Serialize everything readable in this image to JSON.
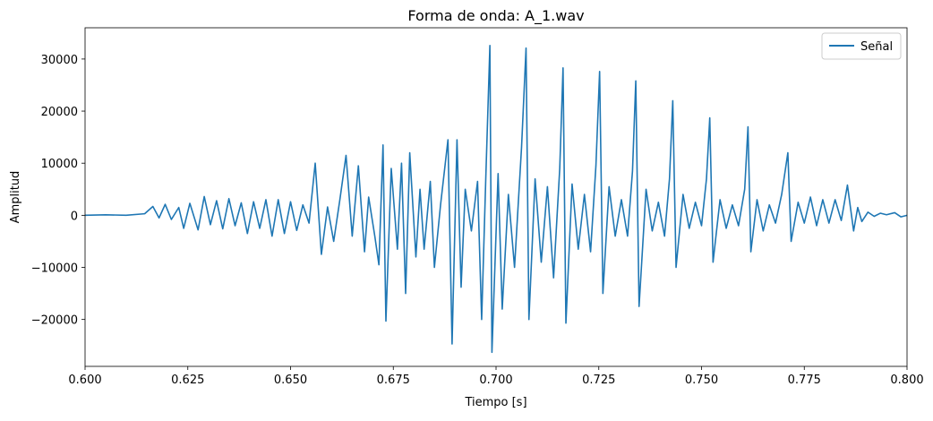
{
  "chart_data": {
    "type": "line",
    "title": "Forma de onda: A_1.wav",
    "xlabel": "Tiempo [s]",
    "ylabel": "Amplitud",
    "xlim": [
      0.6,
      0.8
    ],
    "ylim": [
      -29000,
      36000
    ],
    "x_ticks": [
      0.6,
      0.625,
      0.65,
      0.675,
      0.7,
      0.725,
      0.75,
      0.775,
      0.8
    ],
    "x_tick_labels": [
      "0.600",
      "0.625",
      "0.650",
      "0.675",
      "0.700",
      "0.725",
      "0.750",
      "0.775",
      "0.800"
    ],
    "y_ticks": [
      -20000,
      -10000,
      0,
      10000,
      20000,
      30000
    ],
    "y_tick_labels": [
      "−20000",
      "−10000",
      "0",
      "10000",
      "20000",
      "30000"
    ],
    "grid": false,
    "legend_position": "top-right",
    "series": [
      {
        "name": "Señal",
        "color": "#1f77b4",
        "points": [
          [
            0.6,
            0
          ],
          [
            0.605,
            100
          ],
          [
            0.61,
            0
          ],
          [
            0.6145,
            300
          ],
          [
            0.6165,
            1700
          ],
          [
            0.618,
            -500
          ],
          [
            0.6195,
            2100
          ],
          [
            0.621,
            -800
          ],
          [
            0.6228,
            1500
          ],
          [
            0.624,
            -2500
          ],
          [
            0.6255,
            2300
          ],
          [
            0.6275,
            -2800
          ],
          [
            0.629,
            3600
          ],
          [
            0.6305,
            -1800
          ],
          [
            0.632,
            2800
          ],
          [
            0.6335,
            -2600
          ],
          [
            0.635,
            3200
          ],
          [
            0.6365,
            -2000
          ],
          [
            0.638,
            2400
          ],
          [
            0.6395,
            -3500
          ],
          [
            0.641,
            2600
          ],
          [
            0.6425,
            -2500
          ],
          [
            0.644,
            3000
          ],
          [
            0.6455,
            -4000
          ],
          [
            0.647,
            3000
          ],
          [
            0.6485,
            -3500
          ],
          [
            0.65,
            2600
          ],
          [
            0.6515,
            -2900
          ],
          [
            0.653,
            2000
          ],
          [
            0.6545,
            -1500
          ],
          [
            0.656,
            10000
          ],
          [
            0.6575,
            -7500
          ],
          [
            0.659,
            1600
          ],
          [
            0.6605,
            -5000
          ],
          [
            0.662,
            3000
          ],
          [
            0.6635,
            11500
          ],
          [
            0.665,
            -4000
          ],
          [
            0.6665,
            9500
          ],
          [
            0.668,
            -7000
          ],
          [
            0.669,
            3500
          ],
          [
            0.6705,
            -4000
          ],
          [
            0.6715,
            -9500
          ],
          [
            0.6725,
            13500
          ],
          [
            0.6732,
            -20300
          ],
          [
            0.6745,
            9000
          ],
          [
            0.676,
            -6500
          ],
          [
            0.677,
            10000
          ],
          [
            0.678,
            -15000
          ],
          [
            0.679,
            12000
          ],
          [
            0.6805,
            -8000
          ],
          [
            0.6815,
            5000
          ],
          [
            0.6825,
            -6500
          ],
          [
            0.684,
            6500
          ],
          [
            0.685,
            -10000
          ],
          [
            0.6865,
            2000
          ],
          [
            0.6883,
            14500
          ],
          [
            0.6893,
            -24700
          ],
          [
            0.6905,
            14500
          ],
          [
            0.6915,
            -13800
          ],
          [
            0.6925,
            5000
          ],
          [
            0.694,
            -3000
          ],
          [
            0.6955,
            6500
          ],
          [
            0.6965,
            -20000
          ],
          [
            0.6975,
            7000
          ],
          [
            0.6985,
            32600
          ],
          [
            0.699,
            -26300
          ],
          [
            0.7005,
            8000
          ],
          [
            0.7015,
            -18000
          ],
          [
            0.703,
            4000
          ],
          [
            0.7045,
            -10000
          ],
          [
            0.7062,
            13000
          ],
          [
            0.7073,
            32100
          ],
          [
            0.708,
            -20000
          ],
          [
            0.7095,
            7000
          ],
          [
            0.711,
            -9000
          ],
          [
            0.7125,
            5500
          ],
          [
            0.714,
            -12000
          ],
          [
            0.7155,
            9000
          ],
          [
            0.7163,
            28300
          ],
          [
            0.717,
            -20700
          ],
          [
            0.7185,
            6000
          ],
          [
            0.72,
            -6500
          ],
          [
            0.7215,
            4000
          ],
          [
            0.723,
            -7000
          ],
          [
            0.7243,
            9500
          ],
          [
            0.7252,
            27600
          ],
          [
            0.726,
            -15000
          ],
          [
            0.7275,
            5500
          ],
          [
            0.729,
            -4000
          ],
          [
            0.7305,
            3000
          ],
          [
            0.732,
            -4000
          ],
          [
            0.7332,
            8500
          ],
          [
            0.734,
            25800
          ],
          [
            0.7348,
            -17500
          ],
          [
            0.7365,
            5000
          ],
          [
            0.738,
            -3000
          ],
          [
            0.7395,
            2500
          ],
          [
            0.741,
            -4000
          ],
          [
            0.7422,
            7000
          ],
          [
            0.743,
            22000
          ],
          [
            0.7438,
            -10000
          ],
          [
            0.7455,
            4000
          ],
          [
            0.747,
            -2500
          ],
          [
            0.7485,
            2500
          ],
          [
            0.75,
            -2000
          ],
          [
            0.7512,
            7000
          ],
          [
            0.752,
            18700
          ],
          [
            0.7528,
            -9000
          ],
          [
            0.7545,
            3000
          ],
          [
            0.756,
            -2500
          ],
          [
            0.7575,
            2000
          ],
          [
            0.759,
            -2000
          ],
          [
            0.7605,
            5000
          ],
          [
            0.7613,
            17000
          ],
          [
            0.762,
            -7000
          ],
          [
            0.7635,
            3000
          ],
          [
            0.765,
            -3000
          ],
          [
            0.7665,
            2000
          ],
          [
            0.768,
            -1500
          ],
          [
            0.7695,
            4000
          ],
          [
            0.771,
            12000
          ],
          [
            0.7718,
            -5000
          ],
          [
            0.7735,
            2500
          ],
          [
            0.775,
            -1500
          ],
          [
            0.7765,
            3500
          ],
          [
            0.778,
            -2000
          ],
          [
            0.7795,
            3000
          ],
          [
            0.781,
            -1500
          ],
          [
            0.7825,
            3000
          ],
          [
            0.784,
            -1000
          ],
          [
            0.7855,
            5800
          ],
          [
            0.787,
            -3000
          ],
          [
            0.788,
            1500
          ],
          [
            0.789,
            -1200
          ],
          [
            0.7905,
            600
          ],
          [
            0.792,
            -200
          ],
          [
            0.7935,
            400
          ],
          [
            0.795,
            100
          ],
          [
            0.797,
            500
          ],
          [
            0.7985,
            -300
          ],
          [
            0.8,
            0
          ]
        ]
      }
    ]
  }
}
